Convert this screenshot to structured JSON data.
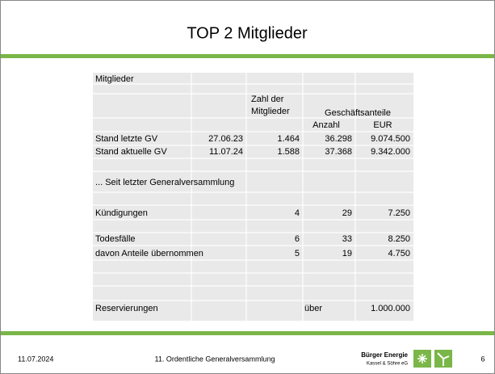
{
  "title": "TOP 2 Mitglieder",
  "table": {
    "heading": "Mitglieder",
    "header": {
      "members": [
        "Zahl der",
        "Mitglieder"
      ],
      "shares_group": "Geschäftsanteile",
      "count": "Anzahl",
      "eur": "EUR"
    },
    "rows": [
      {
        "label": "Stand letzte GV",
        "date": "27.06.23",
        "members": "1.464",
        "count": "36.298",
        "eur": "9.074.500"
      },
      {
        "label": "Stand aktuelle GV",
        "date": "11.07.24",
        "members": "1.588",
        "count": "37.368",
        "eur": "9.342.000"
      },
      {
        "label": "... Seit letzter Generalversammlung"
      },
      {
        "label": "Kündigungen",
        "members": "4",
        "count": "29",
        "eur": "7.250"
      },
      {
        "label": "Todesfälle",
        "members": "6",
        "count": "33",
        "eur": "8.250"
      },
      {
        "label": "davon Anteile übernommen",
        "members": "5",
        "count": "19",
        "eur": "4.750"
      },
      {
        "label": "Reservierungen",
        "prefix": "über",
        "eur": "1.000.000"
      }
    ]
  },
  "footer": {
    "date": "11.07.2024",
    "event": "11. Ordentliche Generalversammlung",
    "logo_name": "Bürger Energie",
    "logo_sub": "Kassel & Söhre eG",
    "page": "6"
  }
}
